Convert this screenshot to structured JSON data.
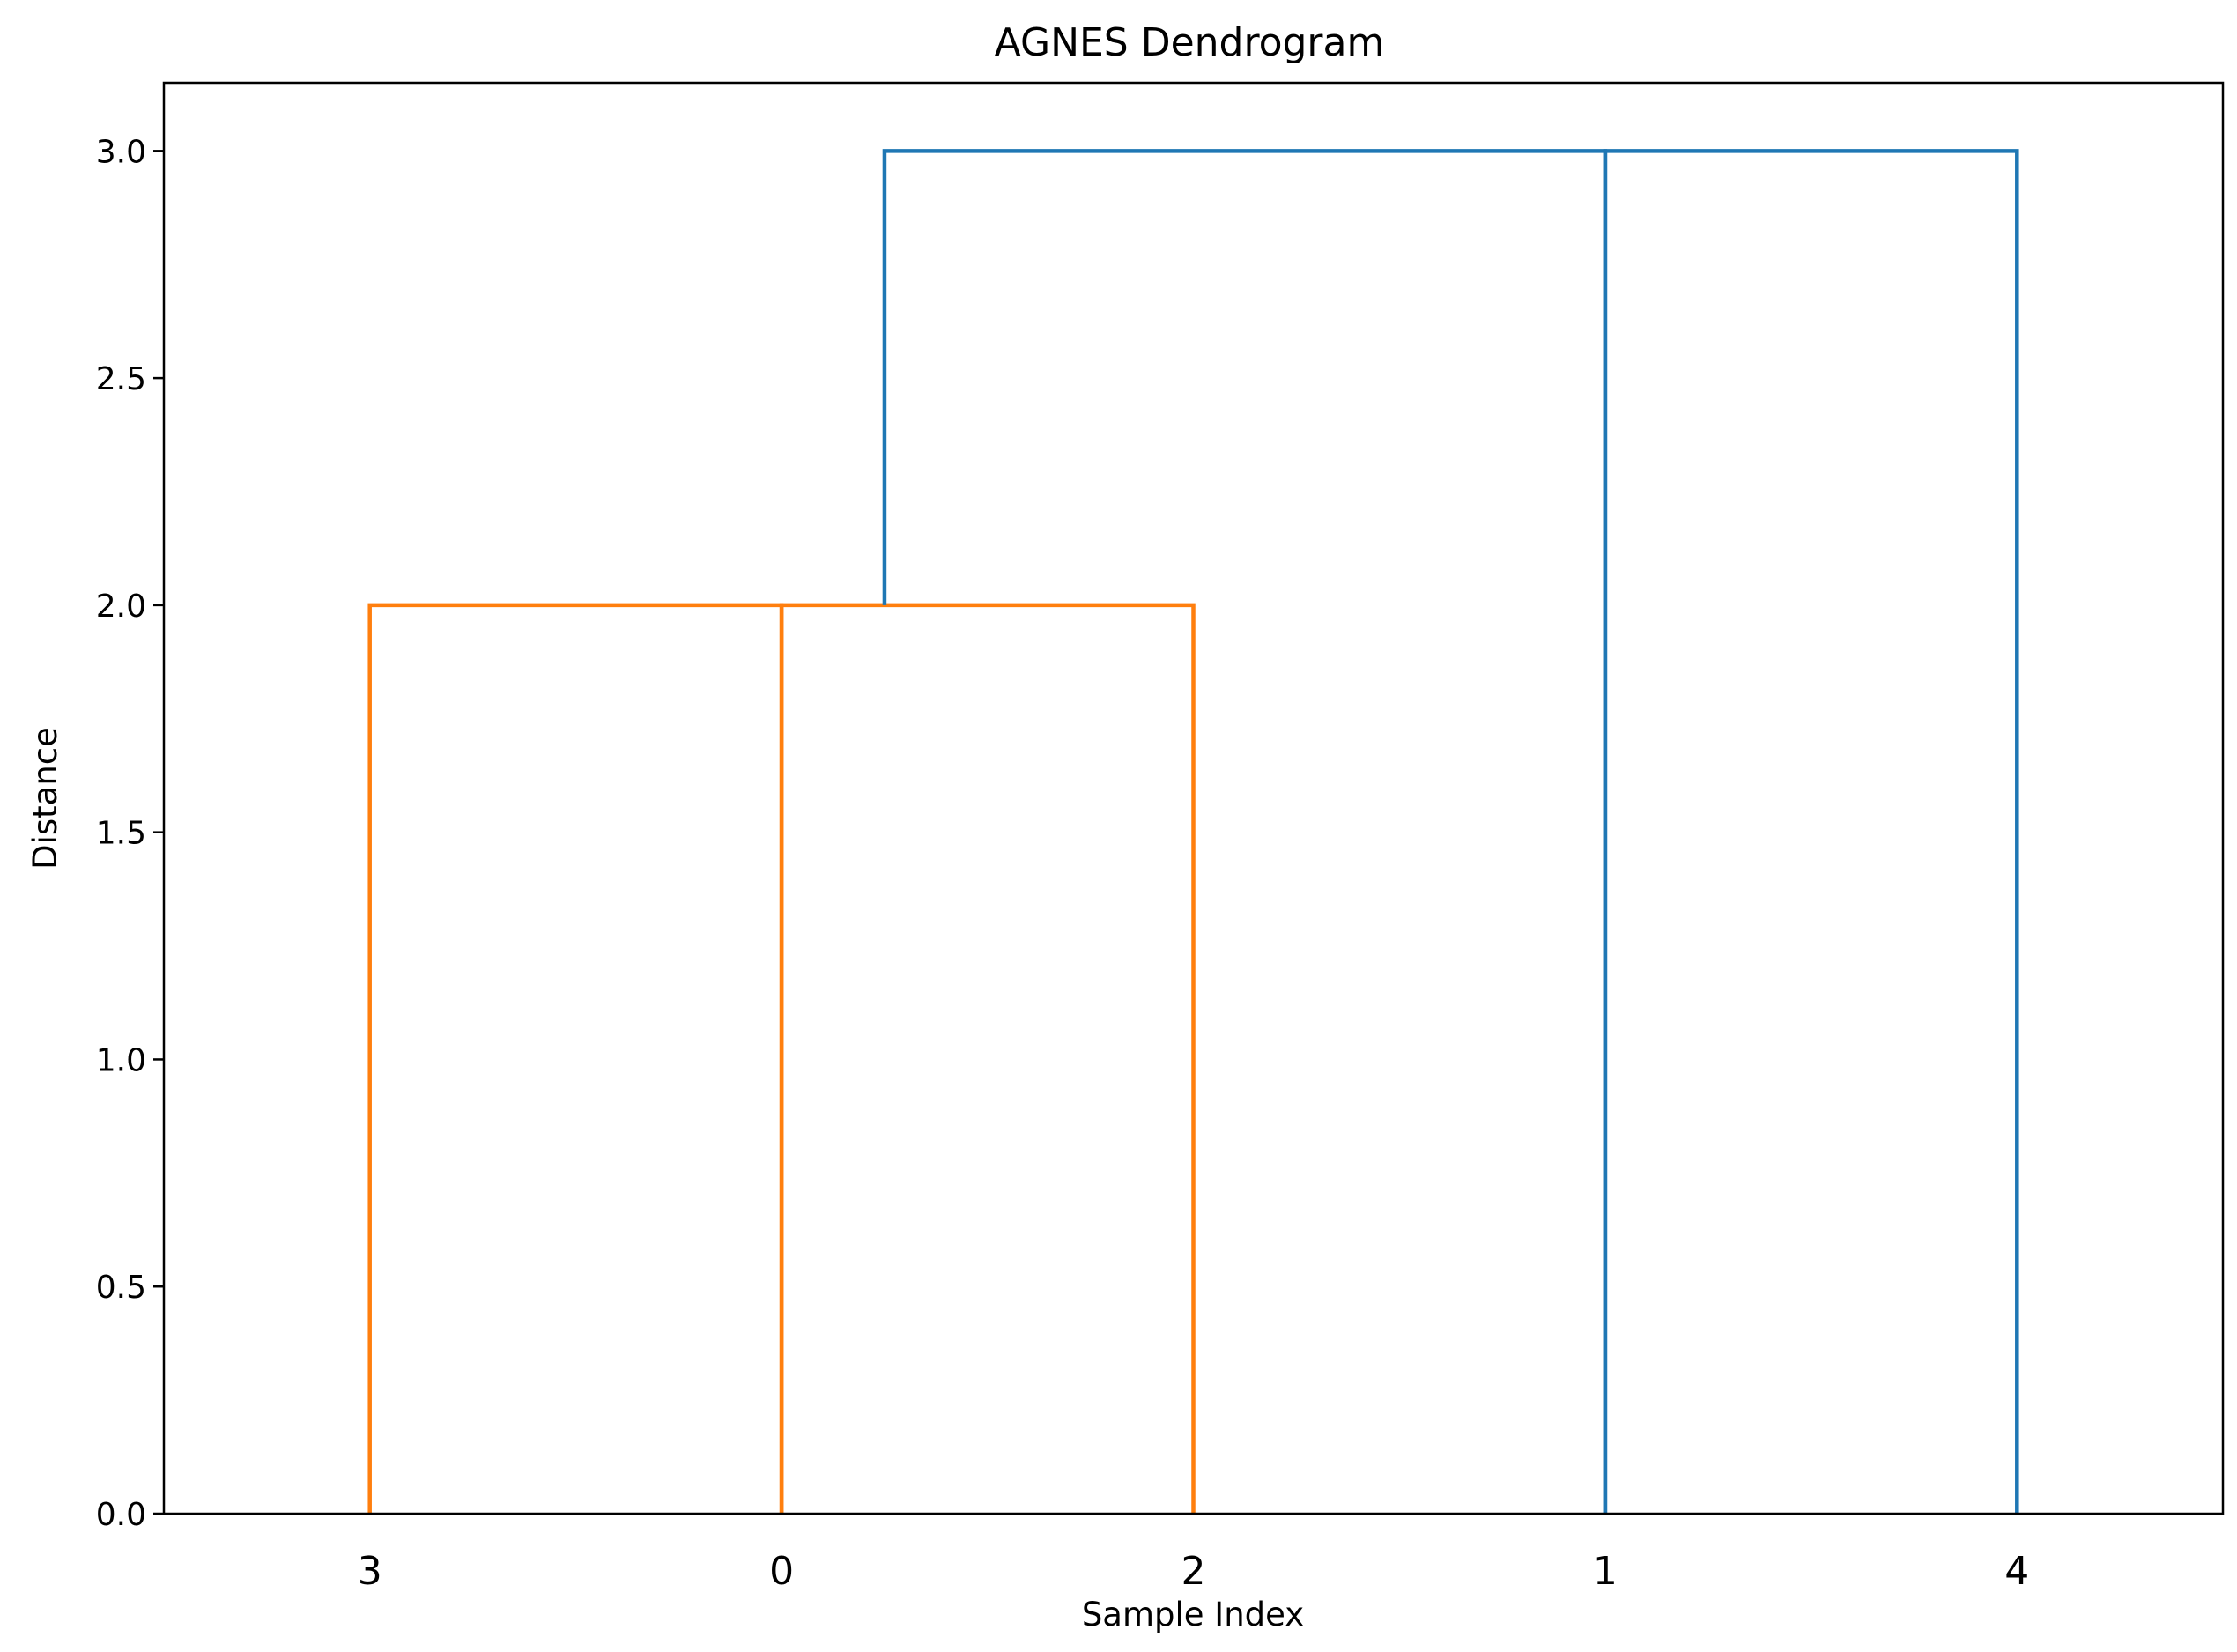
{
  "chart_data": {
    "type": "dendrogram",
    "title": "AGNES Dendrogram",
    "xlabel": "Sample Index",
    "ylabel": "Distance",
    "leaf_order": [
      "3",
      "0",
      "2",
      "1",
      "4"
    ],
    "ylim": [
      0,
      3.15
    ],
    "yticks": [
      0.0,
      0.5,
      1.0,
      1.5,
      2.0,
      2.5,
      3.0
    ],
    "ytick_labels": [
      "0.0",
      "0.5",
      "1.0",
      "1.5",
      "2.0",
      "2.5",
      "3.0"
    ],
    "grid": false,
    "legend": "none",
    "links": [
      {
        "left": "3",
        "right": "0",
        "height": 2.0,
        "color": "#ff7f0e"
      },
      {
        "left": "0",
        "right": "2",
        "height": 2.0,
        "color": "#ff7f0e"
      },
      {
        "left": "cluster(3,0,2)",
        "right": "1",
        "height": 3.0,
        "color": "#1f77b4"
      },
      {
        "left": "1",
        "right": "4",
        "height": 3.0,
        "color": "#1f77b4"
      }
    ],
    "colors": {
      "cluster": "#ff7f0e",
      "above_threshold": "#1f77b4"
    }
  }
}
